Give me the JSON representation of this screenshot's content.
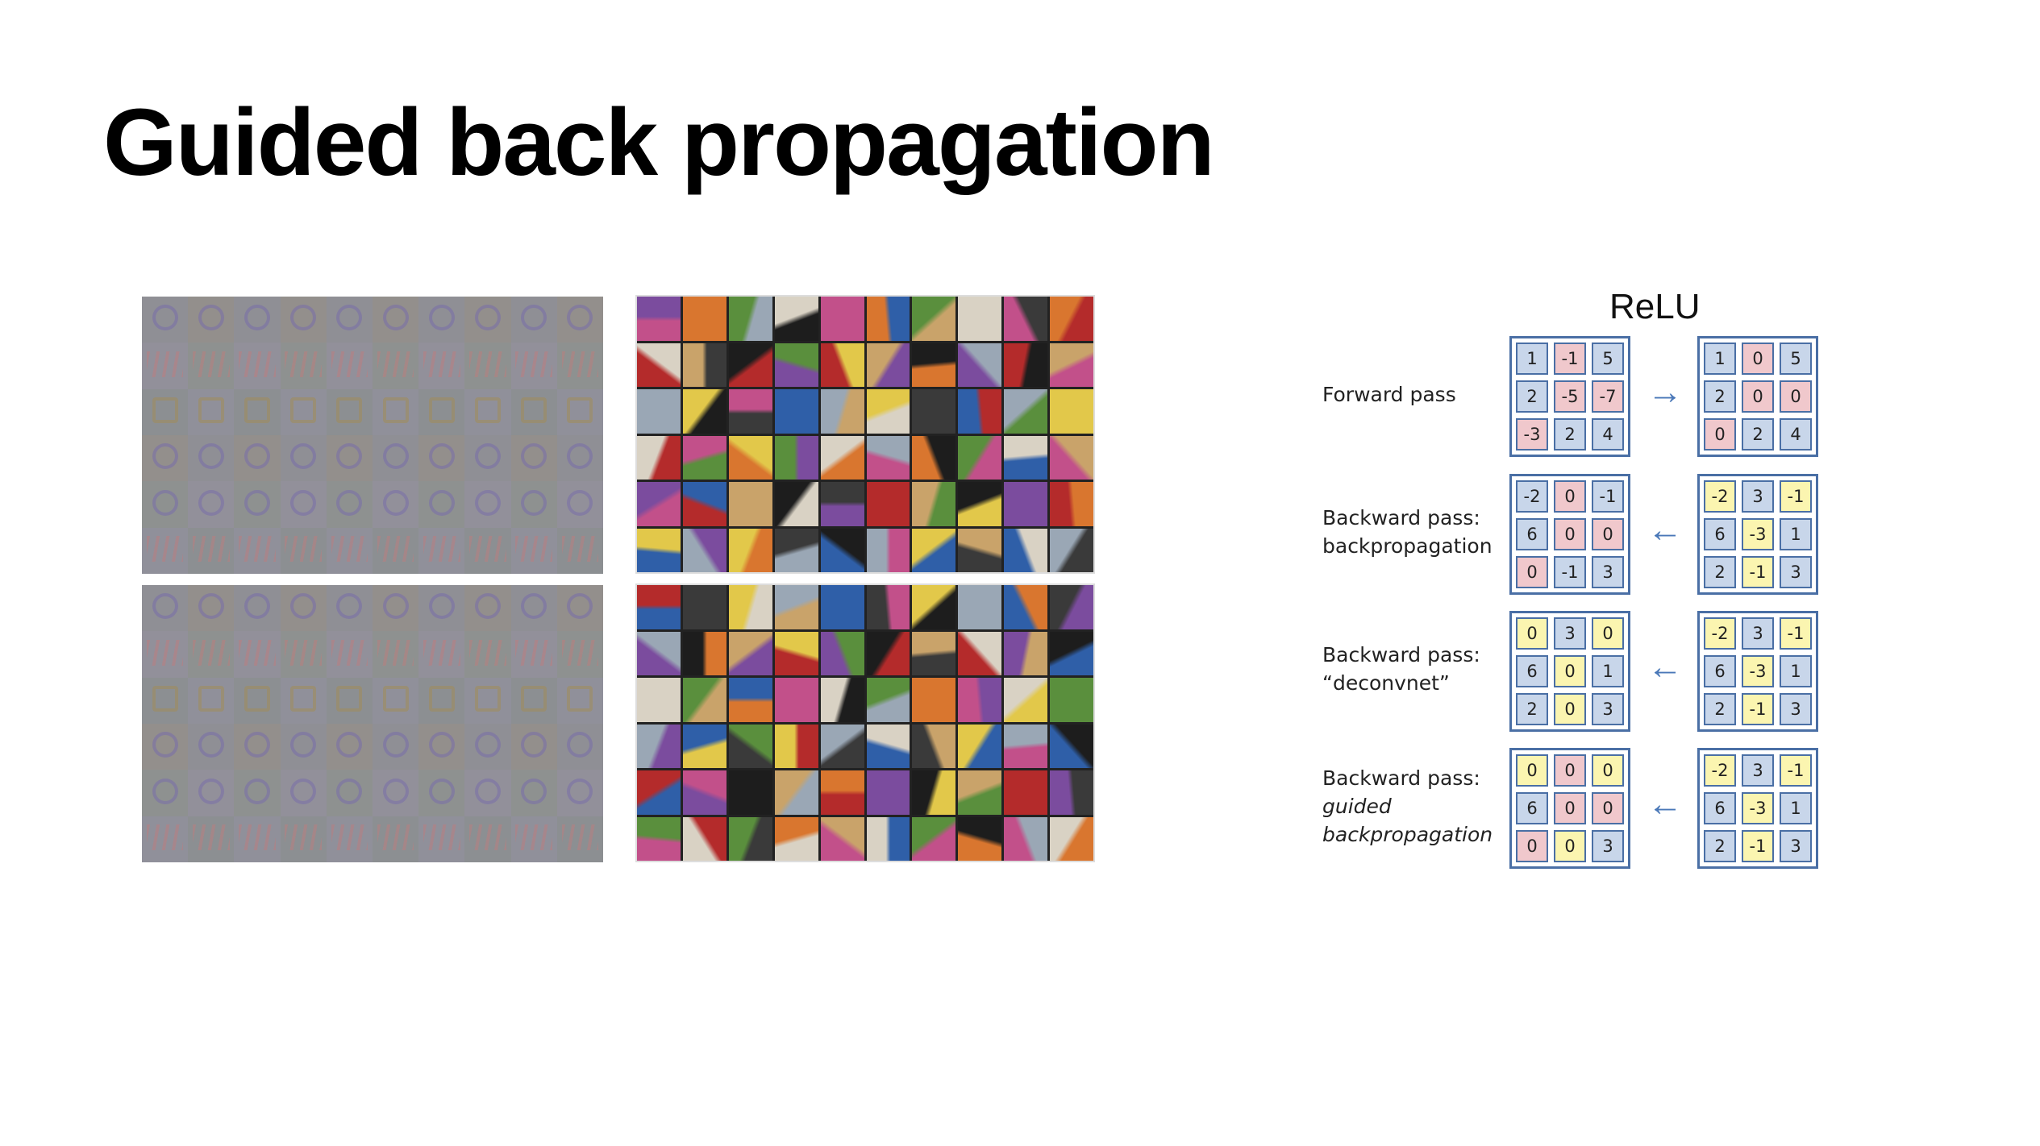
{
  "title": "Guided back propagation",
  "relu": {
    "title": "ReLU",
    "colors": {
      "blue": "#c8d6ea",
      "red": "#f0c8cc",
      "yellow": "#fbf5b0",
      "border": "#4a6fa5",
      "arrow": "#4a78b8"
    },
    "rows": [
      {
        "label_lines": [
          "Forward pass"
        ],
        "arrow": "→",
        "left": [
          [
            "1",
            "-1",
            "5"
          ],
          [
            "2",
            "-5",
            "-7"
          ],
          [
            "-3",
            "2",
            "4"
          ]
        ],
        "left_colors": [
          [
            "b",
            "r",
            "b"
          ],
          [
            "b",
            "r",
            "r"
          ],
          [
            "r",
            "b",
            "b"
          ]
        ],
        "right": [
          [
            "1",
            "0",
            "5"
          ],
          [
            "2",
            "0",
            "0"
          ],
          [
            "0",
            "2",
            "4"
          ]
        ],
        "right_colors": [
          [
            "b",
            "r",
            "b"
          ],
          [
            "b",
            "r",
            "r"
          ],
          [
            "r",
            "b",
            "b"
          ]
        ]
      },
      {
        "label_lines": [
          "Backward pass:",
          "backpropagation"
        ],
        "arrow": "←",
        "left": [
          [
            "-2",
            "0",
            "-1"
          ],
          [
            "6",
            "0",
            "0"
          ],
          [
            "0",
            "-1",
            "3"
          ]
        ],
        "left_colors": [
          [
            "b",
            "r",
            "b"
          ],
          [
            "b",
            "r",
            "r"
          ],
          [
            "r",
            "b",
            "b"
          ]
        ],
        "right": [
          [
            "-2",
            "3",
            "-1"
          ],
          [
            "6",
            "-3",
            "1"
          ],
          [
            "2",
            "-1",
            "3"
          ]
        ],
        "right_colors": [
          [
            "y",
            "b",
            "y"
          ],
          [
            "b",
            "y",
            "b"
          ],
          [
            "b",
            "y",
            "b"
          ]
        ]
      },
      {
        "label_lines": [
          "Backward pass:",
          "“deconvnet”"
        ],
        "arrow": "←",
        "left": [
          [
            "0",
            "3",
            "0"
          ],
          [
            "6",
            "0",
            "1"
          ],
          [
            "2",
            "0",
            "3"
          ]
        ],
        "left_colors": [
          [
            "y",
            "b",
            "y"
          ],
          [
            "b",
            "y",
            "b"
          ],
          [
            "b",
            "y",
            "b"
          ]
        ],
        "right": [
          [
            "-2",
            "3",
            "-1"
          ],
          [
            "6",
            "-3",
            "1"
          ],
          [
            "2",
            "-1",
            "3"
          ]
        ],
        "right_colors": [
          [
            "y",
            "b",
            "y"
          ],
          [
            "b",
            "y",
            "b"
          ],
          [
            "b",
            "y",
            "b"
          ]
        ]
      },
      {
        "label_lines": [
          "Backward pass:",
          "guided",
          "backpropagation"
        ],
        "label_italic_from": 1,
        "arrow": "←",
        "left": [
          [
            "0",
            "0",
            "0"
          ],
          [
            "6",
            "0",
            "0"
          ],
          [
            "0",
            "0",
            "3"
          ]
        ],
        "left_colors": [
          [
            "y",
            "r",
            "y"
          ],
          [
            "b",
            "r",
            "r"
          ],
          [
            "r",
            "y",
            "b"
          ]
        ],
        "right": [
          [
            "-2",
            "3",
            "-1"
          ],
          [
            "6",
            "-3",
            "1"
          ],
          [
            "2",
            "-1",
            "3"
          ]
        ],
        "right_colors": [
          [
            "y",
            "b",
            "y"
          ],
          [
            "b",
            "y",
            "b"
          ],
          [
            "b",
            "y",
            "b"
          ]
        ]
      }
    ]
  },
  "panels": {
    "patch_palette": [
      "#2f5fa8",
      "#c9a36a",
      "#d9d2c4",
      "#3a3a3a",
      "#b42b2b",
      "#5a8f3d",
      "#e2c84a",
      "#7b4c9e",
      "#d9762f",
      "#9aa7b5",
      "#1d1d1d",
      "#c2508a"
    ],
    "guided_palette": [
      "#8f8f95",
      "#92909a",
      "#8c8f92",
      "#938f8c",
      "#8e9190",
      "#90909a"
    ]
  }
}
